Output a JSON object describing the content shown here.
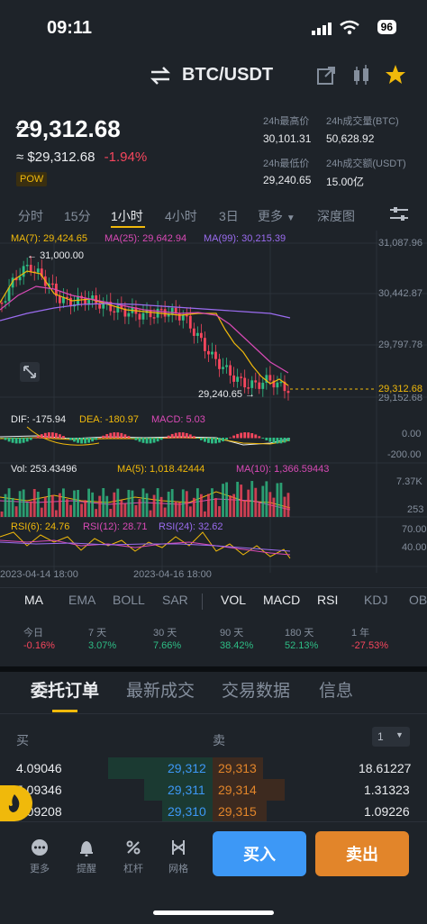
{
  "status_bar": {
    "time": "09:11",
    "battery": "96"
  },
  "header": {
    "pair": "BTC/USDT"
  },
  "ticker": {
    "last_price": "29,312.68",
    "usd_price": "≈ $29,312.68",
    "change_pct": "-1.94%",
    "tag": "POW",
    "high_label": "24h最高价",
    "high": "30,101.31",
    "vol_btc_label": "24h成交量(BTC)",
    "vol_btc": "50,628.92",
    "low_label": "24h最低价",
    "low": "29,240.65",
    "vol_usdt_label": "24h成交额(USDT)",
    "vol_usdt": "15.00亿"
  },
  "timeframes": [
    "分时",
    "15分",
    "1小时",
    "4小时",
    "3日",
    "更多",
    "深度图"
  ],
  "chart_header": {
    "ma7": "MA(7): 29,424.65",
    "ma25": "MA(25): 29,642.94",
    "ma99": "MA(99): 30,215.39"
  },
  "chart_axis": {
    "p1": "31,087.96",
    "p2": "30,442.87",
    "p3": "29,797.78",
    "p4": "29,152.68",
    "last": "29,312.68",
    "hi_mark": "31,000.00",
    "lo_mark": "29,240.65",
    "macd_0": "0.00",
    "macd_neg": "-200.00",
    "vol_top": "7.37K",
    "vol_bot": "253",
    "rsi_70": "70.00",
    "rsi_40": "40.00",
    "date1": "2023-04-14 18:00",
    "date2": "2023-04-16 18:00"
  },
  "macd_header": {
    "dif": "DIF: -175.94",
    "dea": "DEA: -180.97",
    "macd": "MACD: 5.03"
  },
  "vol_header": {
    "vol": "Vol: 253.43496",
    "ma5": "MA(5): 1,018.42444",
    "ma10": "MA(10): 1,366.59443"
  },
  "rsi_header": {
    "rsi6": "RSI(6): 24.76",
    "rsi12": "RSI(12): 28.71",
    "rsi24": "RSI(24): 32.62"
  },
  "indicators": {
    "main": [
      "MA",
      "EMA",
      "BOLL",
      "SAR"
    ],
    "sub": [
      "VOL",
      "MACD",
      "RSI",
      "KDJ",
      "OB"
    ]
  },
  "performance": [
    {
      "label": "今日",
      "value": "-0.16%"
    },
    {
      "label": "7 天",
      "value": "3.07%"
    },
    {
      "label": "30 天",
      "value": "7.66%"
    },
    {
      "label": "90 天",
      "value": "38.42%"
    },
    {
      "label": "180 天",
      "value": "52.13%"
    },
    {
      "label": "1 年",
      "value": "-27.53%"
    }
  ],
  "section_tabs": [
    "委托订单",
    "最新成交",
    "交易数据",
    "信息"
  ],
  "orderbook": {
    "buy_label": "买",
    "sell_label": "卖",
    "precision": "1",
    "rows": [
      {
        "bid_qty": "4.09046",
        "bid_price": "29,312",
        "ask_price": "29,313",
        "ask_qty": "18.61227"
      },
      {
        "bid_qty": "5.09346",
        "bid_price": "29,311",
        "ask_price": "29,314",
        "ask_qty": "1.31323"
      },
      {
        "bid_qty": "1.09208",
        "bid_price": "29,310",
        "ask_price": "29,315",
        "ask_qty": "1.09226"
      }
    ]
  },
  "bottom_nav": [
    "更多",
    "提醒",
    "杠杆",
    "网格"
  ],
  "buy_label": "买入",
  "sell_label": "卖出",
  "colors": {
    "up": "#2ebd85",
    "down": "#f6465d",
    "accent": "#f0b90b",
    "buy_btn": "#3d98f6",
    "sell_btn": "#e2852a"
  }
}
